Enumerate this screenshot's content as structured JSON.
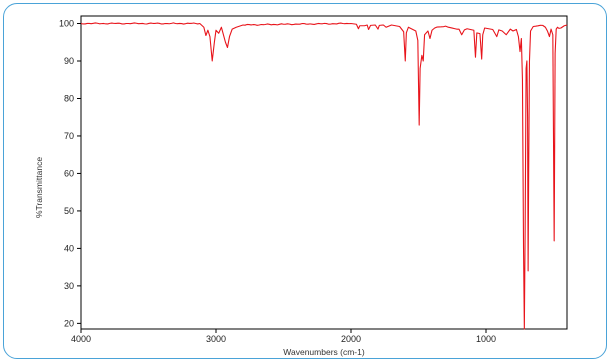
{
  "chart_data": {
    "type": "line",
    "title": "",
    "xlabel": "Wavenumbers (cm-1)",
    "ylabel": "%Transmittance",
    "xlim": [
      4000,
      400
    ],
    "ylim": [
      18.5,
      102
    ],
    "x_reversed": true,
    "xticks": [
      4000,
      3000,
      2000,
      1000
    ],
    "yticks": [
      20,
      30,
      40,
      50,
      60,
      70,
      80,
      90,
      100
    ],
    "grid": false,
    "legend": "none",
    "series": [
      {
        "color": "#e8141b",
        "baseline": 99.8,
        "x_range": [
          4000,
          400
        ],
        "points": [
          [
            4000,
            100.0
          ],
          [
            3300,
            100.0
          ],
          [
            3120,
            100.0
          ],
          [
            3090,
            99.0
          ],
          [
            3075,
            96.8
          ],
          [
            3060,
            98.2
          ],
          [
            3045,
            96.5
          ],
          [
            3028,
            90.0
          ],
          [
            3012,
            95.0
          ],
          [
            3000,
            98.2
          ],
          [
            2980,
            97.4
          ],
          [
            2960,
            99.0
          ],
          [
            2930,
            95.0
          ],
          [
            2915,
            93.6
          ],
          [
            2900,
            96.5
          ],
          [
            2880,
            98.5
          ],
          [
            2850,
            99.0
          ],
          [
            2800,
            99.6
          ],
          [
            2500,
            99.8
          ],
          [
            2000,
            100.0
          ],
          [
            1960,
            99.8
          ],
          [
            1945,
            98.6
          ],
          [
            1935,
            99.4
          ],
          [
            1900,
            99.4
          ],
          [
            1880,
            99.6
          ],
          [
            1870,
            98.4
          ],
          [
            1855,
            99.5
          ],
          [
            1820,
            99.6
          ],
          [
            1800,
            98.5
          ],
          [
            1790,
            99.5
          ],
          [
            1760,
            99.6
          ],
          [
            1740,
            99.0
          ],
          [
            1700,
            99.6
          ],
          [
            1640,
            99.2
          ],
          [
            1610,
            97.8
          ],
          [
            1598,
            90.0
          ],
          [
            1590,
            97.5
          ],
          [
            1575,
            99.0
          ],
          [
            1520,
            98.0
          ],
          [
            1505,
            95.5
          ],
          [
            1495,
            72.9
          ],
          [
            1488,
            88.0
          ],
          [
            1475,
            91.5
          ],
          [
            1465,
            90.0
          ],
          [
            1455,
            97.0
          ],
          [
            1430,
            98.0
          ],
          [
            1415,
            96.0
          ],
          [
            1400,
            98.2
          ],
          [
            1380,
            98.8
          ],
          [
            1300,
            99.3
          ],
          [
            1200,
            98.5
          ],
          [
            1180,
            97.0
          ],
          [
            1160,
            98.3
          ],
          [
            1140,
            98.6
          ],
          [
            1090,
            98.2
          ],
          [
            1078,
            91.0
          ],
          [
            1068,
            97.5
          ],
          [
            1045,
            97.3
          ],
          [
            1032,
            90.5
          ],
          [
            1024,
            97.0
          ],
          [
            1010,
            98.8
          ],
          [
            950,
            98.4
          ],
          [
            920,
            96.5
          ],
          [
            905,
            98.3
          ],
          [
            880,
            98.0
          ],
          [
            850,
            97.0
          ],
          [
            820,
            98.5
          ],
          [
            800,
            98.0
          ],
          [
            775,
            98.4
          ],
          [
            760,
            96.5
          ],
          [
            748,
            92.5
          ],
          [
            738,
            96.0
          ],
          [
            730,
            85.0
          ],
          [
            722,
            40.0
          ],
          [
            716,
            18.5
          ],
          [
            710,
            45.0
          ],
          [
            703,
            88.0
          ],
          [
            697,
            90.0
          ],
          [
            692,
            75.0
          ],
          [
            688,
            34.0
          ],
          [
            684,
            60.0
          ],
          [
            678,
            90.0
          ],
          [
            670,
            98.0
          ],
          [
            650,
            99.2
          ],
          [
            580,
            99.5
          ],
          [
            560,
            99.0
          ],
          [
            545,
            98.0
          ],
          [
            530,
            96.5
          ],
          [
            518,
            98.5
          ],
          [
            505,
            97.0
          ],
          [
            495,
            42.0
          ],
          [
            488,
            92.0
          ],
          [
            480,
            98.5
          ],
          [
            470,
            99.0
          ],
          [
            460,
            98.7
          ],
          [
            445,
            98.8
          ],
          [
            420,
            99.4
          ],
          [
            400,
            99.6
          ]
        ]
      }
    ]
  }
}
